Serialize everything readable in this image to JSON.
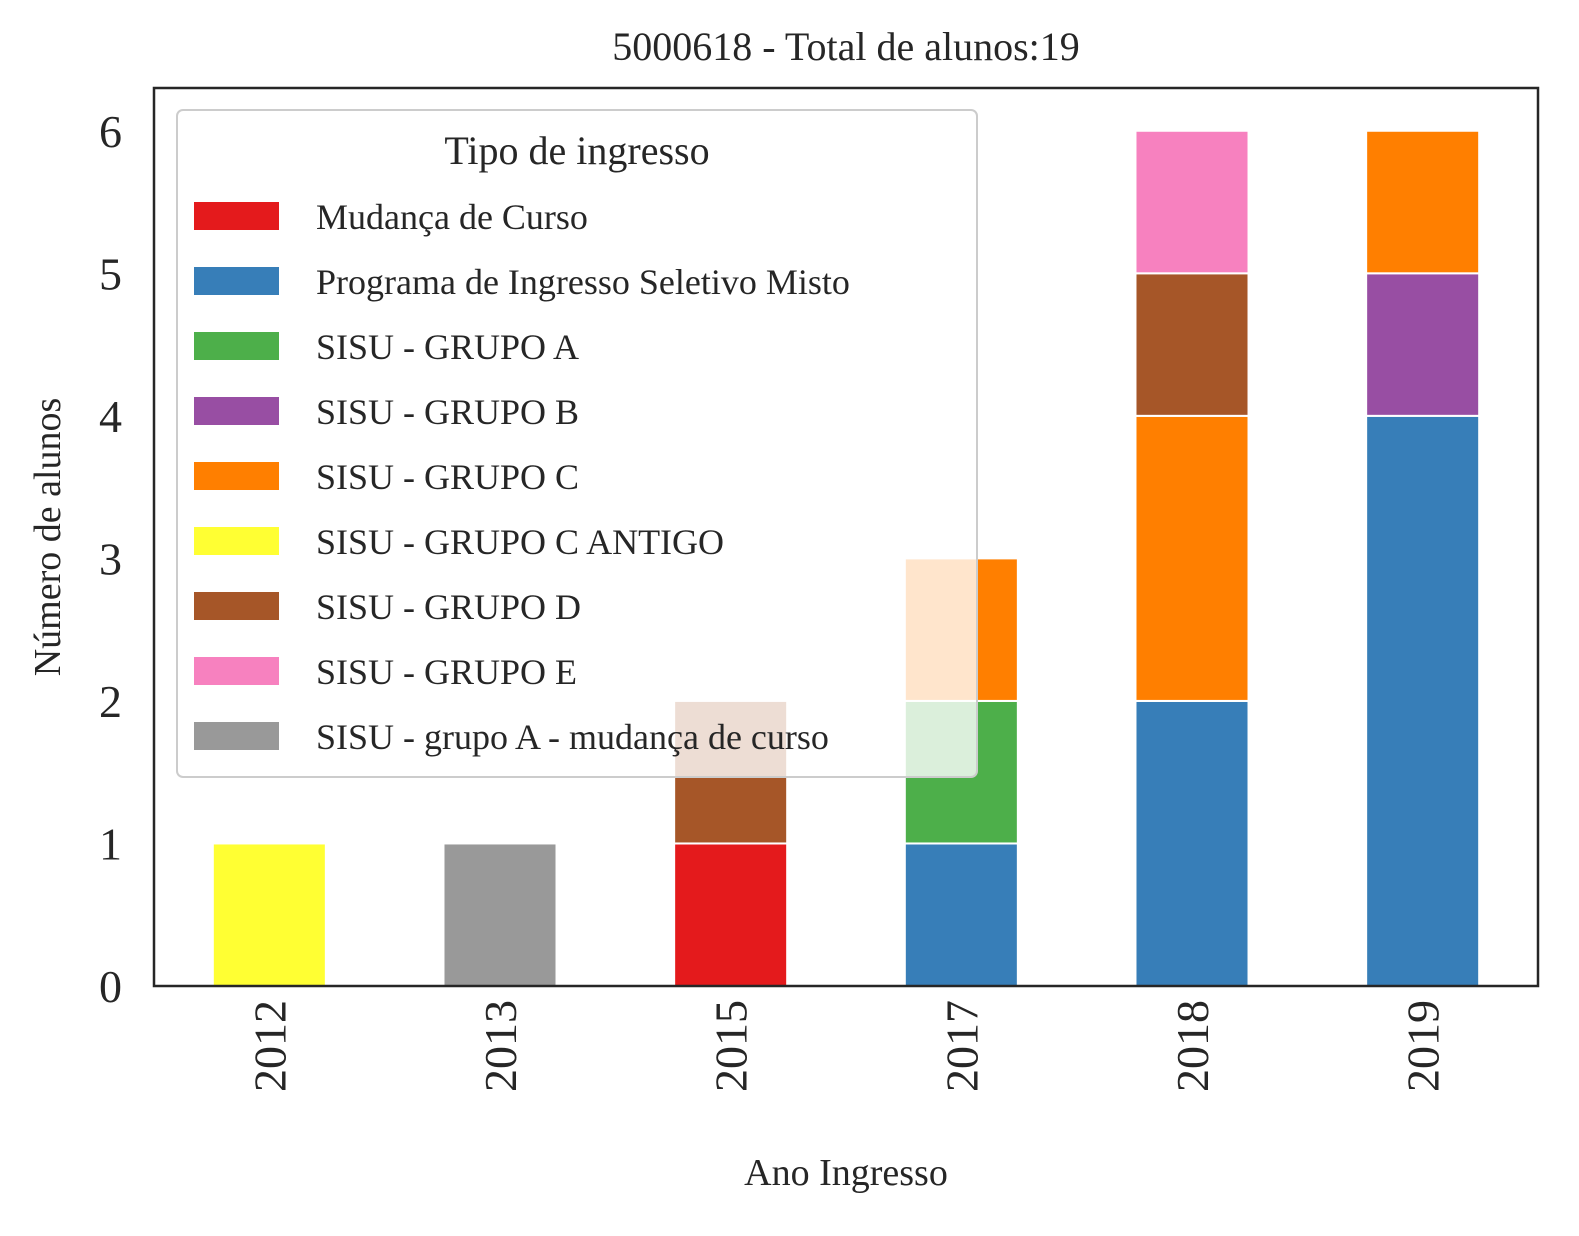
{
  "chart_data": {
    "type": "bar",
    "stacked": true,
    "title": "5000618 - Total de alunos:19",
    "xlabel": "Ano Ingresso",
    "ylabel": "Número de alunos",
    "categories": [
      "2012",
      "2013",
      "2015",
      "2017",
      "2018",
      "2019"
    ],
    "ylim": [
      0,
      6.3
    ],
    "yticks": [
      0,
      1,
      2,
      3,
      4,
      5,
      6
    ],
    "grid": false,
    "legend": {
      "title": "Tipo de ingresso",
      "placement": "upper-left"
    },
    "series": [
      {
        "name": "Mudança de Curso",
        "color": "#e41a1c",
        "values": [
          0,
          0,
          1,
          0,
          0,
          0
        ]
      },
      {
        "name": "Programa de Ingresso Seletivo Misto",
        "color": "#377eb8",
        "values": [
          0,
          0,
          0,
          1,
          2,
          4
        ]
      },
      {
        "name": "SISU - GRUPO A",
        "color": "#4daf4a",
        "values": [
          0,
          0,
          0,
          1,
          0,
          0
        ]
      },
      {
        "name": "SISU - GRUPO B",
        "color": "#984ea3",
        "values": [
          0,
          0,
          0,
          0,
          0,
          1
        ]
      },
      {
        "name": "SISU - GRUPO C",
        "color": "#ff7f00",
        "values": [
          0,
          0,
          0,
          1,
          2,
          1
        ]
      },
      {
        "name": "SISU - GRUPO C ANTIGO",
        "color": "#ffff33",
        "values": [
          1,
          0,
          0,
          0,
          0,
          0
        ]
      },
      {
        "name": "SISU - GRUPO D",
        "color": "#a65628",
        "values": [
          0,
          0,
          1,
          0,
          1,
          0
        ]
      },
      {
        "name": "SISU - GRUPO E",
        "color": "#f781bf",
        "values": [
          0,
          0,
          0,
          0,
          1,
          0
        ]
      },
      {
        "name": "SISU - grupo A - mudança de curso",
        "color": "#999999",
        "values": [
          0,
          1,
          0,
          0,
          0,
          0
        ]
      }
    ]
  }
}
